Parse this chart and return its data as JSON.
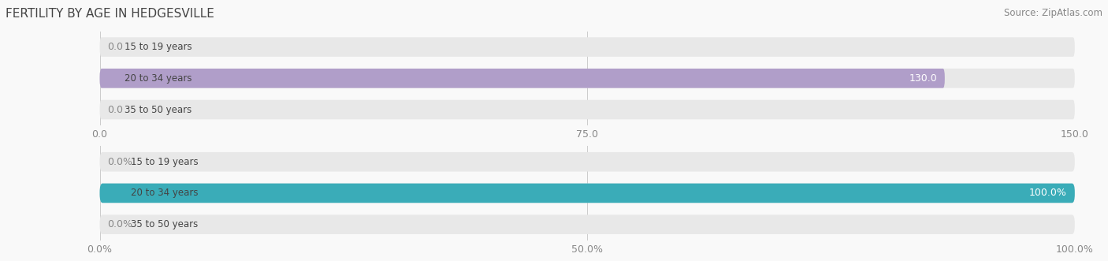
{
  "title": "FERTILITY BY AGE IN HEDGESVILLE",
  "source_text": "Source: ZipAtlas.com",
  "top_chart": {
    "categories": [
      "15 to 19 years",
      "20 to 34 years",
      "35 to 50 years"
    ],
    "values": [
      0.0,
      130.0,
      0.0
    ],
    "xlim": [
      0,
      150
    ],
    "xticks": [
      0.0,
      75.0,
      150.0
    ],
    "bar_color": "#b09ec9",
    "bar_bg_color": "#e8e8e8",
    "label_color_inside": "#ffffff",
    "label_color_outside": "#888888"
  },
  "bottom_chart": {
    "categories": [
      "15 to 19 years",
      "20 to 34 years",
      "35 to 50 years"
    ],
    "values": [
      0.0,
      100.0,
      0.0
    ],
    "xlim": [
      0,
      100
    ],
    "xticks": [
      0.0,
      50.0,
      100.0
    ],
    "bar_color": "#3aacb8",
    "bar_bg_color": "#e8e8e8",
    "label_color_inside": "#ffffff",
    "label_color_outside": "#888888"
  },
  "bg_color": "#f9f9f9",
  "bar_height": 0.62,
  "label_fontsize": 9,
  "tick_fontsize": 9,
  "title_fontsize": 11,
  "category_fontsize": 8.5
}
